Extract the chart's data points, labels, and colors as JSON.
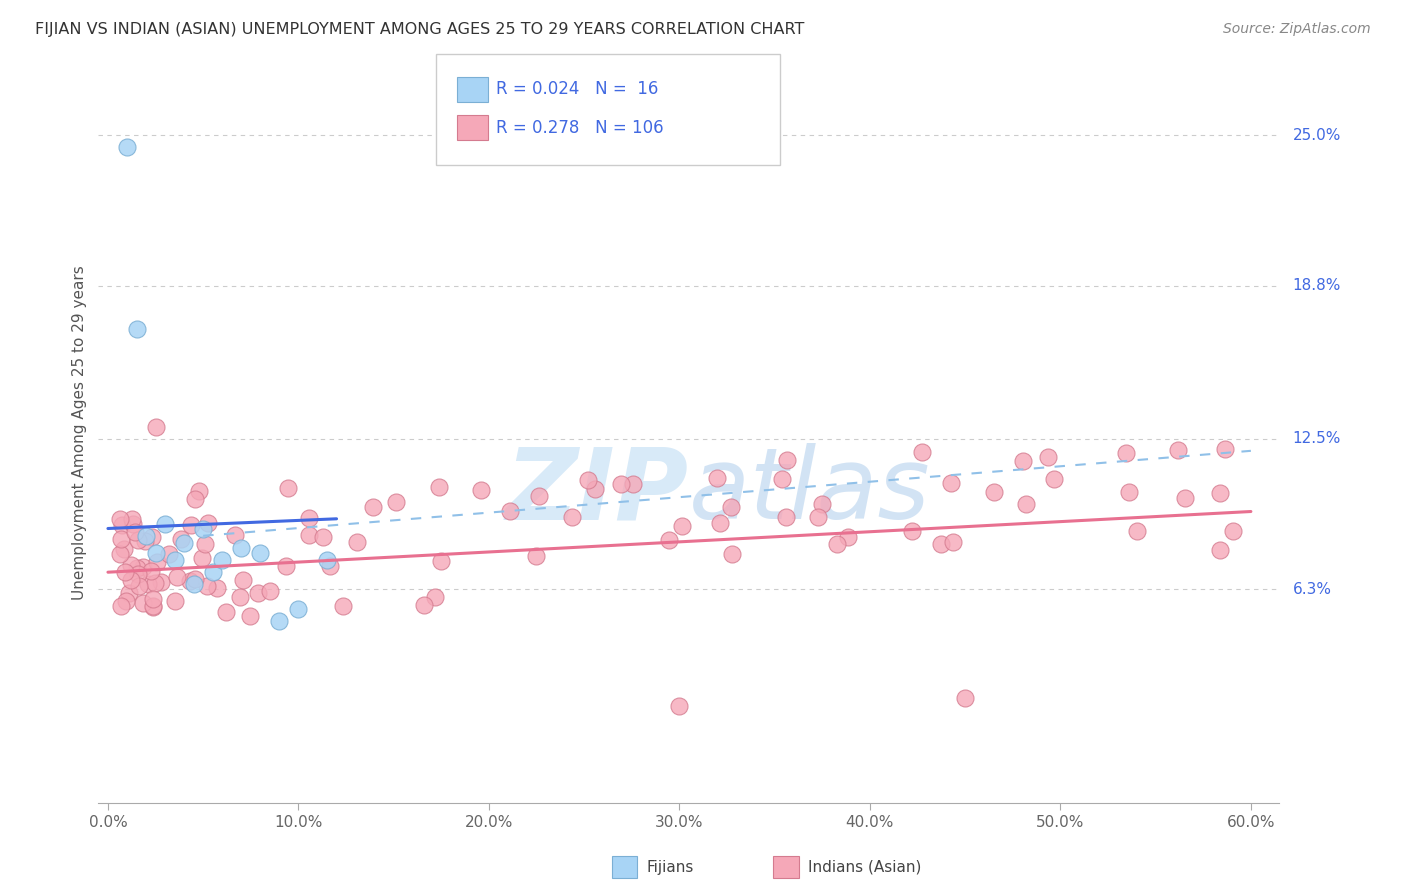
{
  "title": "FIJIAN VS INDIAN (ASIAN) UNEMPLOYMENT AMONG AGES 25 TO 29 YEARS CORRELATION CHART",
  "source": "Source: ZipAtlas.com",
  "xlabel_ticks": [
    "0.0%",
    "10.0%",
    "20.0%",
    "30.0%",
    "40.0%",
    "50.0%",
    "60.0%"
  ],
  "xlabel_vals": [
    0,
    10,
    20,
    30,
    40,
    50,
    60
  ],
  "ylabel_ticks_right": [
    "25.0%",
    "18.8%",
    "12.5%",
    "6.3%"
  ],
  "ylabel_vals": [
    25.0,
    18.8,
    12.5,
    6.3
  ],
  "xlim": [
    0,
    60
  ],
  "ylim": [
    0,
    27
  ],
  "fijian_R": 0.024,
  "fijian_N": 16,
  "indian_R": 0.278,
  "indian_N": 106,
  "fijian_color": "#A8D4F5",
  "fijian_edge_color": "#7BAFD4",
  "indian_color": "#F5A8B8",
  "indian_edge_color": "#D47B8F",
  "trend_fijian_color": "#4169E1",
  "trend_indian_color": "#E87090",
  "trend_dashed_color": "#90C0E8",
  "grid_color": "#CCCCCC",
  "label_color": "#4169E1",
  "title_color": "#333333",
  "source_color": "#888888",
  "ylabel_label_color": "#555555",
  "background_color": "#FFFFFF",
  "watermark_color": "#D8EAF8",
  "fijian_trend_start_x": 0,
  "fijian_trend_start_y": 8.8,
  "fijian_trend_end_x": 12,
  "fijian_trend_end_y": 9.2,
  "indian_trend_start_x": 0,
  "indian_trend_start_y": 7.0,
  "indian_trend_end_x": 60,
  "indian_trend_end_y": 9.5,
  "dashed_trend_start_x": 5,
  "dashed_trend_start_y": 8.5,
  "dashed_trend_end_x": 60,
  "dashed_trend_end_y": 12.0
}
